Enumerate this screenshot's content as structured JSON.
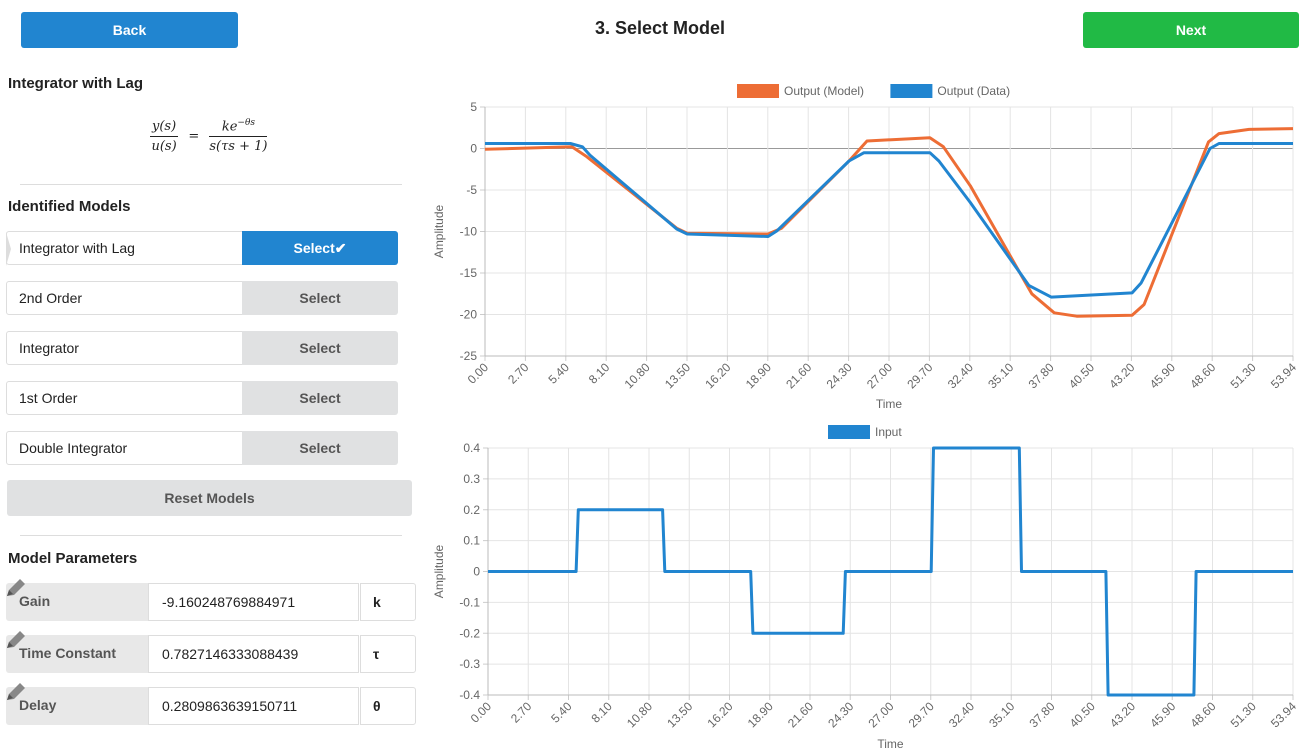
{
  "header": {
    "back_label": "Back",
    "title": "3. Select Model",
    "next_label": "Next"
  },
  "model_info": {
    "name": "Integrator with Lag",
    "equation_lhs_num": "y(s)",
    "equation_lhs_den": "u(s)",
    "equation_rhs_num_base": "ke",
    "equation_rhs_num_exp": "−θs",
    "equation_rhs_den": "s(τs + 1)"
  },
  "identified": {
    "title": "Identified Models",
    "models": [
      {
        "label": "Integrator with Lag",
        "button": "Select✔",
        "selected": true
      },
      {
        "label": "2nd Order",
        "button": "Select",
        "selected": false
      },
      {
        "label": "Integrator",
        "button": "Select",
        "selected": false
      },
      {
        "label": "1st Order",
        "button": "Select",
        "selected": false
      },
      {
        "label": "Double Integrator",
        "button": "Select",
        "selected": false
      }
    ],
    "reset_label": "Reset Models"
  },
  "parameters": {
    "title": "Model Parameters",
    "items": [
      {
        "label": "Gain",
        "value": "-9.160248769884971",
        "unit": "k"
      },
      {
        "label": "Time Constant",
        "value": "0.7827146333088439",
        "unit": "τ"
      },
      {
        "label": "Delay",
        "value": "0.2809863639150711",
        "unit": "θ"
      }
    ]
  },
  "colors": {
    "primary": "#2185d0",
    "success": "#21ba45",
    "model_line": "#ed6d35",
    "data_line": "#2185d0"
  },
  "chart_data": [
    {
      "type": "line",
      "title": "",
      "xlabel": "Time",
      "ylabel": "Amplitude",
      "ylim": [
        -25,
        5
      ],
      "yticks": [
        5,
        0,
        -5,
        -10,
        -15,
        -20,
        -25
      ],
      "xticks": [
        "0.00",
        "2.70",
        "5.40",
        "8.10",
        "10.80",
        "13.50",
        "16.20",
        "18.90",
        "21.60",
        "24.30",
        "27.00",
        "29.70",
        "32.40",
        "35.10",
        "37.80",
        "40.50",
        "43.20",
        "45.90",
        "48.60",
        "51.30",
        "53.94"
      ],
      "xlim": [
        0,
        53.94
      ],
      "legend": "top",
      "series": [
        {
          "name": "Output (Model)",
          "color": "#ed6d35",
          "x": [
            0,
            5.8,
            6.8,
            12.8,
            13.5,
            18.9,
            19.8,
            24.3,
            25.5,
            29.7,
            30.6,
            32.4,
            36.5,
            38.0,
            39.5,
            43.2,
            44.0,
            48.3,
            49.0,
            51.0,
            53.94
          ],
          "y": [
            -0.1,
            0.2,
            -1.0,
            -9.6,
            -10.2,
            -10.3,
            -9.6,
            -1.5,
            0.9,
            1.3,
            0.2,
            -4.5,
            -17.5,
            -19.8,
            -20.2,
            -20.1,
            -18.8,
            0.8,
            1.8,
            2.3,
            2.4
          ]
        },
        {
          "name": "Output (Data)",
          "color": "#2185d0",
          "x": [
            0,
            5.7,
            6.5,
            7.0,
            12.8,
            13.5,
            18.9,
            19.5,
            24.3,
            25.3,
            29.7,
            30.3,
            32.4,
            36.3,
            37.8,
            43.2,
            43.8,
            48.4,
            49.0,
            53.94
          ],
          "y": [
            0.6,
            0.6,
            0.2,
            -0.8,
            -9.7,
            -10.3,
            -10.6,
            -9.9,
            -1.5,
            -0.5,
            -0.5,
            -1.5,
            -6.5,
            -16.5,
            -17.9,
            -17.4,
            -16.2,
            0.0,
            0.6,
            0.6
          ]
        }
      ]
    },
    {
      "type": "line",
      "title": "",
      "xlabel": "Time",
      "ylabel": "Amplitude",
      "ylim": [
        -0.4,
        0.4
      ],
      "yticks": [
        0.4,
        0.3,
        0.2,
        0.1,
        0,
        -0.1,
        -0.2,
        -0.3,
        -0.4
      ],
      "xticks": [
        "0.00",
        "2.70",
        "5.40",
        "8.10",
        "10.80",
        "13.50",
        "16.20",
        "18.90",
        "21.60",
        "24.30",
        "27.00",
        "29.70",
        "32.40",
        "35.10",
        "37.80",
        "40.50",
        "43.20",
        "45.90",
        "48.60",
        "51.30",
        "53.94"
      ],
      "xlim": [
        0,
        53.94
      ],
      "legend": "top",
      "series": [
        {
          "name": "Input",
          "color": "#2185d0",
          "x": [
            0,
            5.9,
            6.05,
            11.7,
            11.85,
            17.6,
            17.75,
            23.8,
            23.95,
            29.7,
            29.85,
            35.6,
            35.75,
            41.4,
            41.55,
            47.3,
            47.45,
            53.94
          ],
          "y": [
            0,
            0,
            0.2,
            0.2,
            0,
            0,
            -0.2,
            -0.2,
            0,
            0,
            0.4,
            0.4,
            0,
            0,
            -0.4,
            -0.4,
            0,
            0
          ]
        }
      ]
    }
  ]
}
